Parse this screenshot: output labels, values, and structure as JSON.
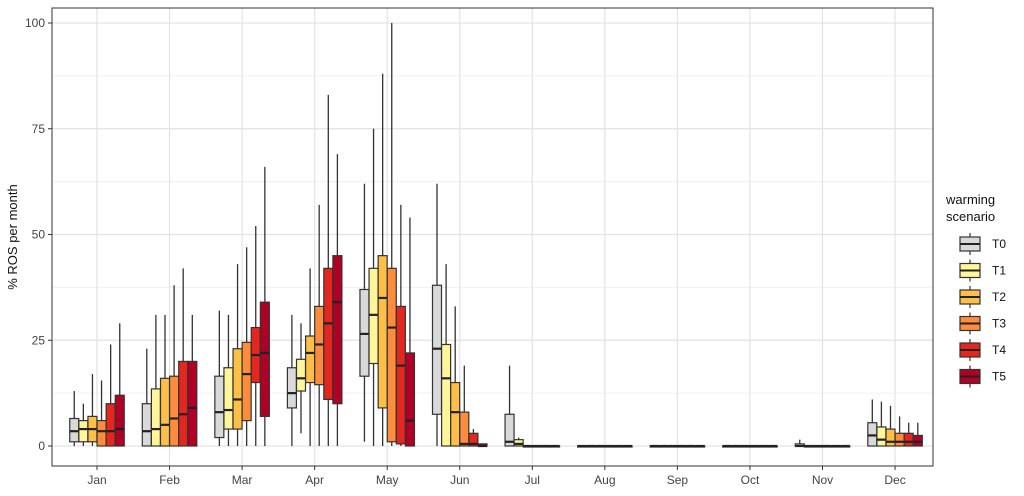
{
  "chart_data": {
    "type": "boxplot",
    "title": "",
    "xlabel": "",
    "ylabel": "% ROS per month",
    "ylim": [
      0,
      100
    ],
    "yticks": [
      0,
      25,
      50,
      75,
      100
    ],
    "grid": true,
    "legend": {
      "title": "warming scenario",
      "title_lines": [
        "warming",
        "scenario"
      ],
      "placement": "right"
    },
    "categories": [
      "Jan",
      "Feb",
      "Mar",
      "Apr",
      "May",
      "Jun",
      "Jul",
      "Aug",
      "Sep",
      "Oct",
      "Nov",
      "Dec"
    ],
    "series": [
      {
        "name": "T0",
        "color": "#d9d9d9",
        "boxes": [
          [
            0,
            1,
            3.5,
            6.5,
            13
          ],
          [
            0,
            0,
            3.5,
            10,
            23
          ],
          [
            0,
            2,
            8,
            16.5,
            32
          ],
          [
            0,
            9,
            12.5,
            18.5,
            31
          ],
          [
            1,
            16.5,
            26.5,
            37,
            62
          ],
          [
            0,
            7.5,
            23,
            38,
            62
          ],
          [
            0,
            0,
            1,
            7.5,
            19
          ],
          [
            0,
            0,
            0,
            0,
            0
          ],
          [
            0,
            0,
            0,
            0,
            0
          ],
          [
            0,
            0,
            0,
            0,
            0
          ],
          [
            0,
            0,
            0,
            0.5,
            1.5
          ],
          [
            0,
            0,
            2.5,
            5.5,
            11
          ]
        ]
      },
      {
        "name": "T1",
        "color": "#fff59a",
        "boxes": [
          [
            0,
            1,
            4,
            6,
            10
          ],
          [
            0,
            0,
            4,
            13.5,
            31
          ],
          [
            0,
            4,
            8.5,
            18.5,
            31
          ],
          [
            3,
            13,
            16,
            20.5,
            29
          ],
          [
            0,
            19.5,
            31,
            42,
            75
          ],
          [
            0,
            0,
            16,
            24,
            43
          ],
          [
            0,
            0,
            0.5,
            1.5,
            2
          ],
          [
            0,
            0,
            0,
            0,
            0
          ],
          [
            0,
            0,
            0,
            0,
            0
          ],
          [
            0,
            0,
            0,
            0,
            0
          ],
          [
            0,
            0,
            0,
            0,
            0
          ],
          [
            0,
            0,
            1.5,
            4.5,
            10.5
          ]
        ]
      },
      {
        "name": "T2",
        "color": "#fdbf47",
        "boxes": [
          [
            0,
            1,
            4,
            7,
            17
          ],
          [
            0,
            0,
            5,
            16,
            31
          ],
          [
            0,
            4,
            11,
            23,
            43
          ],
          [
            0,
            15,
            22,
            26,
            42
          ],
          [
            0,
            9,
            35,
            45,
            88
          ],
          [
            0,
            0,
            8,
            15,
            33
          ],
          [
            0,
            0,
            0,
            0,
            0
          ],
          [
            0,
            0,
            0,
            0,
            0
          ],
          [
            0,
            0,
            0,
            0,
            0
          ],
          [
            0,
            0,
            0,
            0,
            0
          ],
          [
            0,
            0,
            0,
            0,
            0
          ],
          [
            0,
            0,
            1,
            4,
            9.5
          ]
        ]
      },
      {
        "name": "T3",
        "color": "#fd8d3c",
        "boxes": [
          [
            0,
            0,
            3.5,
            6,
            15.5
          ],
          [
            0,
            0,
            6.5,
            16.5,
            38
          ],
          [
            0,
            6,
            17,
            24.5,
            47
          ],
          [
            0,
            14.5,
            24,
            33,
            57
          ],
          [
            0,
            1,
            28,
            42,
            100
          ],
          [
            0,
            0,
            0.5,
            8,
            19
          ],
          [
            0,
            0,
            0,
            0,
            0
          ],
          [
            0,
            0,
            0,
            0,
            0
          ],
          [
            0,
            0,
            0,
            0,
            0
          ],
          [
            0,
            0,
            0,
            0,
            0
          ],
          [
            0,
            0,
            0,
            0,
            0
          ],
          [
            0,
            0,
            1,
            3,
            7
          ]
        ]
      },
      {
        "name": "T4",
        "color": "#e3261e",
        "boxes": [
          [
            0,
            0,
            3.5,
            10,
            24
          ],
          [
            0,
            0,
            7.5,
            20,
            42
          ],
          [
            0,
            15,
            21.5,
            28,
            52
          ],
          [
            0,
            11,
            29,
            42,
            83
          ],
          [
            0,
            0.5,
            19,
            33,
            57
          ],
          [
            0,
            0,
            0.5,
            3,
            4
          ],
          [
            0,
            0,
            0,
            0,
            0
          ],
          [
            0,
            0,
            0,
            0,
            0
          ],
          [
            0,
            0,
            0,
            0,
            0
          ],
          [
            0,
            0,
            0,
            0,
            0
          ],
          [
            0,
            0,
            0,
            0,
            0
          ],
          [
            0,
            0,
            1,
            3,
            5.5
          ]
        ]
      },
      {
        "name": "T5",
        "color": "#b10026",
        "boxes": [
          [
            0,
            0,
            4,
            12,
            29
          ],
          [
            0,
            0,
            9,
            20,
            31
          ],
          [
            0,
            7,
            22,
            34,
            66
          ],
          [
            0,
            10,
            34,
            45,
            69
          ],
          [
            0,
            0,
            6,
            22,
            54
          ],
          [
            0,
            0,
            0,
            0.5,
            0.5
          ],
          [
            0,
            0,
            0,
            0,
            0
          ],
          [
            0,
            0,
            0,
            0,
            0
          ],
          [
            0,
            0,
            0,
            0,
            0
          ],
          [
            0,
            0,
            0,
            0,
            0
          ],
          [
            0,
            0,
            0,
            0,
            0
          ],
          [
            0,
            0,
            1,
            2.5,
            5.5
          ]
        ]
      }
    ],
    "box_format": [
      "whisker_low",
      "q1",
      "median",
      "q3",
      "whisker_high"
    ]
  }
}
